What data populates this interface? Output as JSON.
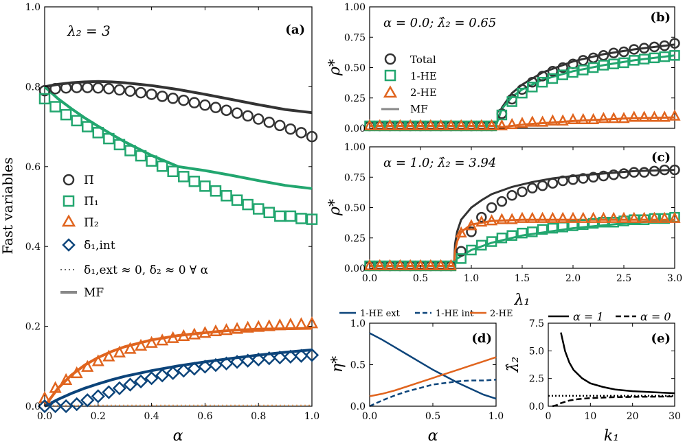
{
  "colors": {
    "total": "#333333",
    "he1": "#22a66f",
    "he2": "#e0641e",
    "dint": "#0c447a",
    "mf": "#888888",
    "grid": "#000000"
  },
  "panels": {
    "a": {
      "label": "(a)",
      "annotation": "λ₂ = 3"
    },
    "b": {
      "label": "(b)",
      "annotation": "α = 0.0; λ̂₂ = 0.65"
    },
    "c": {
      "label": "(c)",
      "annotation": "α = 1.0; λ̂₂ = 3.94"
    },
    "d": {
      "label": "(d)"
    },
    "e": {
      "label": "(e)"
    }
  },
  "legends": {
    "a": {
      "pi": "Π̄",
      "pi1": "Π̄₁",
      "pi2": "Π̄₂",
      "dint": "δ̄₁,int",
      "note": "δ̄₁,ext ≈ 0, δ̄₂ ≈ 0 ∀ α",
      "mf": "MF"
    },
    "b": {
      "total": "Total",
      "he1": "1-HE",
      "he2": "2-HE",
      "mf": "MF"
    },
    "d": {
      "ext": "1-HE ext",
      "int": "1-HE int",
      "he2": "2-HE"
    },
    "e": {
      "a1": "α = 1",
      "a0": "α = 0"
    }
  },
  "chart_data": [
    {
      "id": "a",
      "type": "line",
      "title": "(a)",
      "xlabel": "α",
      "ylabel": "Fast variables",
      "xlim": [
        0,
        1
      ],
      "ylim": [
        0,
        1
      ],
      "xticks": [
        "0.0",
        "0.2",
        "0.4",
        "0.6",
        "0.8",
        "1.0"
      ],
      "yticks": [
        "0.0",
        "0.2",
        "0.4",
        "0.6",
        "0.8",
        "1.0"
      ],
      "x": [
        0,
        0.04,
        0.08,
        0.12,
        0.16,
        0.2,
        0.24,
        0.28,
        0.32,
        0.36,
        0.4,
        0.44,
        0.48,
        0.52,
        0.56,
        0.6,
        0.64,
        0.68,
        0.72,
        0.76,
        0.8,
        0.84,
        0.88,
        0.92,
        0.96,
        1.0
      ],
      "sim": [
        {
          "name": "Π̄",
          "marker": "circle",
          "values": [
            0.79,
            0.795,
            0.797,
            0.798,
            0.798,
            0.797,
            0.795,
            0.792,
            0.789,
            0.785,
            0.781,
            0.776,
            0.771,
            0.766,
            0.76,
            0.754,
            0.748,
            0.741,
            0.734,
            0.727,
            0.719,
            0.711,
            0.703,
            0.694,
            0.685,
            0.675
          ]
        },
        {
          "name": "Π̄₁",
          "marker": "square",
          "values": [
            0.77,
            0.75,
            0.73,
            0.715,
            0.7,
            0.685,
            0.67,
            0.655,
            0.64,
            0.627,
            0.614,
            0.601,
            0.588,
            0.575,
            0.563,
            0.551,
            0.539,
            0.527,
            0.516,
            0.505,
            0.494,
            0.485,
            0.476,
            0.476,
            0.47,
            0.468
          ]
        },
        {
          "name": "Π̄₂",
          "marker": "triangle",
          "values": [
            0.02,
            0.045,
            0.065,
            0.082,
            0.098,
            0.112,
            0.124,
            0.134,
            0.143,
            0.151,
            0.158,
            0.164,
            0.17,
            0.175,
            0.179,
            0.183,
            0.187,
            0.19,
            0.193,
            0.196,
            0.198,
            0.2,
            0.202,
            0.204,
            0.205,
            0.207
          ]
        },
        {
          "name": "δ̄₁,int",
          "marker": "diamond",
          "values": [
            0.0,
            0.0,
            0.0,
            0.005,
            0.015,
            0.025,
            0.035,
            0.045,
            0.054,
            0.062,
            0.07,
            0.077,
            0.083,
            0.089,
            0.094,
            0.099,
            0.103,
            0.107,
            0.111,
            0.114,
            0.117,
            0.12,
            0.122,
            0.124,
            0.126,
            0.128
          ]
        }
      ],
      "mf": [
        {
          "name": "Π̄",
          "x": [
            0,
            0.05,
            0.1,
            0.15,
            0.2,
            0.25,
            0.3,
            0.4,
            0.5,
            0.6,
            0.7,
            0.8,
            0.9,
            1.0
          ],
          "values": [
            0.8,
            0.806,
            0.81,
            0.812,
            0.813,
            0.812,
            0.81,
            0.803,
            0.793,
            0.781,
            0.768,
            0.755,
            0.743,
            0.735
          ]
        },
        {
          "name": "Π̄₁",
          "x": [
            0,
            0.05,
            0.1,
            0.15,
            0.2,
            0.25,
            0.3,
            0.4,
            0.5,
            0.6,
            0.7,
            0.8,
            0.9,
            1.0
          ],
          "values": [
            0.8,
            0.77,
            0.745,
            0.722,
            0.701,
            0.681,
            0.662,
            0.628,
            0.6,
            0.59,
            0.578,
            0.565,
            0.553,
            0.545
          ]
        },
        {
          "name": "Π̄₂",
          "x": [
            0,
            0.05,
            0.1,
            0.15,
            0.2,
            0.25,
            0.3,
            0.4,
            0.5,
            0.6,
            0.7,
            0.8,
            0.9,
            1.0
          ],
          "values": [
            0.0,
            0.045,
            0.078,
            0.103,
            0.122,
            0.137,
            0.149,
            0.166,
            0.177,
            0.184,
            0.19,
            0.193,
            0.194,
            0.195
          ]
        },
        {
          "name": "δ̄₁,int",
          "x": [
            0,
            0.05,
            0.1,
            0.15,
            0.2,
            0.25,
            0.3,
            0.4,
            0.5,
            0.6,
            0.7,
            0.8,
            0.9,
            1.0
          ],
          "values": [
            0.0,
            0.017,
            0.032,
            0.045,
            0.056,
            0.066,
            0.075,
            0.089,
            0.101,
            0.111,
            0.12,
            0.128,
            0.135,
            0.141
          ]
        }
      ]
    },
    {
      "id": "b",
      "type": "line",
      "title": "(b)",
      "xlabel": "",
      "ylabel": "ρ*",
      "xlim": [
        0,
        3
      ],
      "ylim": [
        0,
        1
      ],
      "yticks": [
        "0.00",
        "0.25",
        "0.50",
        "0.75",
        "1.00"
      ],
      "x": [
        0,
        0.1,
        0.2,
        0.3,
        0.4,
        0.5,
        0.6,
        0.7,
        0.8,
        0.9,
        1.0,
        1.1,
        1.2,
        1.3,
        1.4,
        1.5,
        1.6,
        1.7,
        1.8,
        1.9,
        2.0,
        2.1,
        2.2,
        2.3,
        2.4,
        2.5,
        2.6,
        2.7,
        2.8,
        2.9,
        3.0
      ],
      "sim": [
        {
          "name": "Total",
          "marker": "circle",
          "values": [
            0.02,
            0.02,
            0.02,
            0.02,
            0.02,
            0.02,
            0.02,
            0.02,
            0.02,
            0.02,
            0.02,
            0.02,
            0.02,
            0.12,
            0.24,
            0.32,
            0.38,
            0.43,
            0.47,
            0.5,
            0.53,
            0.56,
            0.58,
            0.6,
            0.62,
            0.63,
            0.65,
            0.66,
            0.67,
            0.68,
            0.7
          ]
        },
        {
          "name": "1-HE",
          "marker": "square",
          "values": [
            0.02,
            0.02,
            0.02,
            0.02,
            0.02,
            0.02,
            0.02,
            0.02,
            0.02,
            0.02,
            0.02,
            0.02,
            0.02,
            0.11,
            0.22,
            0.29,
            0.34,
            0.38,
            0.41,
            0.44,
            0.46,
            0.48,
            0.5,
            0.52,
            0.53,
            0.54,
            0.56,
            0.57,
            0.58,
            0.59,
            0.6
          ]
        },
        {
          "name": "2-HE",
          "marker": "triangle",
          "values": [
            0.02,
            0.02,
            0.02,
            0.02,
            0.02,
            0.02,
            0.02,
            0.02,
            0.02,
            0.02,
            0.02,
            0.02,
            0.02,
            0.02,
            0.03,
            0.04,
            0.05,
            0.05,
            0.06,
            0.06,
            0.07,
            0.07,
            0.07,
            0.08,
            0.08,
            0.08,
            0.09,
            0.09,
            0.09,
            0.09,
            0.1
          ]
        }
      ],
      "mf": [
        {
          "name": "Total",
          "x": [
            0,
            1.24,
            1.25,
            1.3,
            1.4,
            1.5,
            1.7,
            2.0,
            2.3,
            2.6,
            3.0
          ],
          "values": [
            0.02,
            0.02,
            0.04,
            0.17,
            0.29,
            0.36,
            0.46,
            0.55,
            0.61,
            0.65,
            0.69
          ]
        },
        {
          "name": "1-HE",
          "x": [
            0,
            1.24,
            1.25,
            1.3,
            1.4,
            1.5,
            1.7,
            2.0,
            2.3,
            2.6,
            3.0
          ],
          "values": [
            0.02,
            0.02,
            0.04,
            0.16,
            0.26,
            0.32,
            0.4,
            0.47,
            0.52,
            0.56,
            0.6
          ]
        },
        {
          "name": "2-HE",
          "x": [
            0,
            1.24,
            1.25,
            1.3,
            1.5,
            2.0,
            2.5,
            3.0
          ],
          "values": [
            0.02,
            0.02,
            0.02,
            0.01,
            0.03,
            0.06,
            0.08,
            0.09
          ]
        }
      ]
    },
    {
      "id": "c",
      "type": "line",
      "title": "(c)",
      "xlabel": "λ₁",
      "ylabel": "ρ*",
      "xlim": [
        0,
        3
      ],
      "ylim": [
        0,
        1
      ],
      "xticks": [
        "0.0",
        "0.5",
        "1.0",
        "1.5",
        "2.0",
        "2.5",
        "3.0"
      ],
      "yticks": [
        "0.00",
        "0.25",
        "0.50",
        "0.75",
        "1.00"
      ],
      "x": [
        0,
        0.1,
        0.2,
        0.3,
        0.4,
        0.5,
        0.6,
        0.7,
        0.8,
        0.9,
        1.0,
        1.1,
        1.2,
        1.3,
        1.4,
        1.5,
        1.6,
        1.7,
        1.8,
        1.9,
        2.0,
        2.1,
        2.2,
        2.3,
        2.4,
        2.5,
        2.6,
        2.7,
        2.8,
        2.9,
        3.0
      ],
      "sim": [
        {
          "name": "Total",
          "marker": "circle",
          "values": [
            0.02,
            0.02,
            0.02,
            0.02,
            0.02,
            0.02,
            0.02,
            0.02,
            0.02,
            0.14,
            0.3,
            0.42,
            0.5,
            0.55,
            0.6,
            0.63,
            0.66,
            0.68,
            0.7,
            0.72,
            0.73,
            0.74,
            0.75,
            0.76,
            0.77,
            0.78,
            0.79,
            0.79,
            0.8,
            0.81,
            0.81
          ]
        },
        {
          "name": "1-HE",
          "marker": "square",
          "values": [
            0.02,
            0.02,
            0.02,
            0.02,
            0.02,
            0.02,
            0.02,
            0.02,
            0.02,
            0.08,
            0.15,
            0.19,
            0.22,
            0.25,
            0.27,
            0.29,
            0.3,
            0.32,
            0.33,
            0.34,
            0.35,
            0.36,
            0.37,
            0.38,
            0.38,
            0.39,
            0.4,
            0.4,
            0.41,
            0.41,
            0.42
          ]
        },
        {
          "name": "2-HE",
          "marker": "triangle",
          "values": [
            0.02,
            0.02,
            0.02,
            0.02,
            0.02,
            0.02,
            0.02,
            0.02,
            0.02,
            0.29,
            0.35,
            0.38,
            0.39,
            0.4,
            0.4,
            0.41,
            0.41,
            0.41,
            0.41,
            0.41,
            0.41,
            0.41,
            0.41,
            0.41,
            0.41,
            0.41,
            0.41,
            0.41,
            0.41,
            0.41,
            0.41
          ]
        }
      ],
      "mf": [
        {
          "name": "Total",
          "x": [
            0,
            0.83,
            0.84,
            0.86,
            0.9,
            1.0,
            1.1,
            1.2,
            1.4,
            1.6,
            1.8,
            2.0,
            2.3,
            2.6,
            3.0
          ],
          "values": [
            0.02,
            0.02,
            0.2,
            0.3,
            0.4,
            0.5,
            0.56,
            0.61,
            0.67,
            0.71,
            0.74,
            0.76,
            0.78,
            0.8,
            0.81
          ]
        },
        {
          "name": "1-HE",
          "x": [
            0,
            0.83,
            0.84,
            0.86,
            0.9,
            1.0,
            1.2,
            1.5,
            2.0,
            2.5,
            3.0
          ],
          "values": [
            0.02,
            0.02,
            0.06,
            0.08,
            0.1,
            0.15,
            0.21,
            0.27,
            0.33,
            0.37,
            0.4
          ]
        },
        {
          "name": "2-HE",
          "x": [
            0,
            0.83,
            0.84,
            0.86,
            0.9,
            1.0,
            1.2,
            1.5,
            2.0,
            2.5,
            3.0
          ],
          "values": [
            0.02,
            0.02,
            0.14,
            0.22,
            0.3,
            0.36,
            0.39,
            0.4,
            0.4,
            0.4,
            0.4
          ]
        }
      ]
    },
    {
      "id": "d",
      "type": "line",
      "title": "(d)",
      "xlabel": "α",
      "ylabel": "η*",
      "xlim": [
        0,
        1
      ],
      "ylim": [
        0,
        1
      ],
      "xticks": [
        "0.0",
        "0.5",
        "1.0"
      ],
      "yticks": [
        "0.0",
        "0.5",
        "1.0"
      ],
      "series": [
        {
          "name": "1-HE ext",
          "style": "solid",
          "color": "dint",
          "x": [
            0,
            0.1,
            0.2,
            0.3,
            0.4,
            0.5,
            0.6,
            0.7,
            0.8,
            0.9,
            1.0
          ],
          "values": [
            0.88,
            0.8,
            0.71,
            0.62,
            0.53,
            0.44,
            0.36,
            0.28,
            0.21,
            0.14,
            0.09
          ]
        },
        {
          "name": "1-HE int",
          "style": "dashed",
          "color": "dint",
          "x": [
            0,
            0.1,
            0.2,
            0.3,
            0.4,
            0.5,
            0.6,
            0.7,
            0.8,
            0.9,
            1.0
          ],
          "values": [
            0,
            0.07,
            0.13,
            0.18,
            0.22,
            0.26,
            0.28,
            0.3,
            0.31,
            0.31,
            0.32
          ]
        },
        {
          "name": "2-HE",
          "style": "solid",
          "color": "he2",
          "x": [
            0,
            0.1,
            0.2,
            0.3,
            0.4,
            0.5,
            0.6,
            0.7,
            0.8,
            0.9,
            1.0
          ],
          "values": [
            0.12,
            0.15,
            0.19,
            0.24,
            0.29,
            0.34,
            0.39,
            0.44,
            0.49,
            0.54,
            0.59
          ]
        }
      ]
    },
    {
      "id": "e",
      "type": "line",
      "title": "(e)",
      "xlabel": "k₁",
      "ylabel": "λ̂₂",
      "xlim": [
        0,
        30
      ],
      "ylim": [
        0,
        8
      ],
      "xticks": [
        "0",
        "10",
        "20",
        "30"
      ],
      "yticks": [
        "0.0",
        "2.5",
        "5.0",
        "7.5"
      ],
      "series": [
        {
          "name": "α = 1",
          "style": "solid",
          "x": [
            3,
            4,
            5,
            6,
            8,
            10,
            13,
            16,
            20,
            25,
            30
          ],
          "values": [
            7.1,
            5.3,
            4.2,
            3.5,
            2.7,
            2.2,
            1.85,
            1.6,
            1.45,
            1.35,
            1.25
          ]
        },
        {
          "name": "α = 0",
          "style": "dashed",
          "x": [
            1,
            2,
            3,
            5,
            7,
            10,
            15,
            20,
            25,
            30
          ],
          "values": [
            0,
            0.1,
            0.3,
            0.55,
            0.68,
            0.78,
            0.86,
            0.9,
            0.92,
            0.94
          ]
        },
        {
          "name": "reference",
          "style": "dotted",
          "x": [
            0,
            30
          ],
          "values": [
            1,
            1
          ]
        }
      ]
    }
  ]
}
